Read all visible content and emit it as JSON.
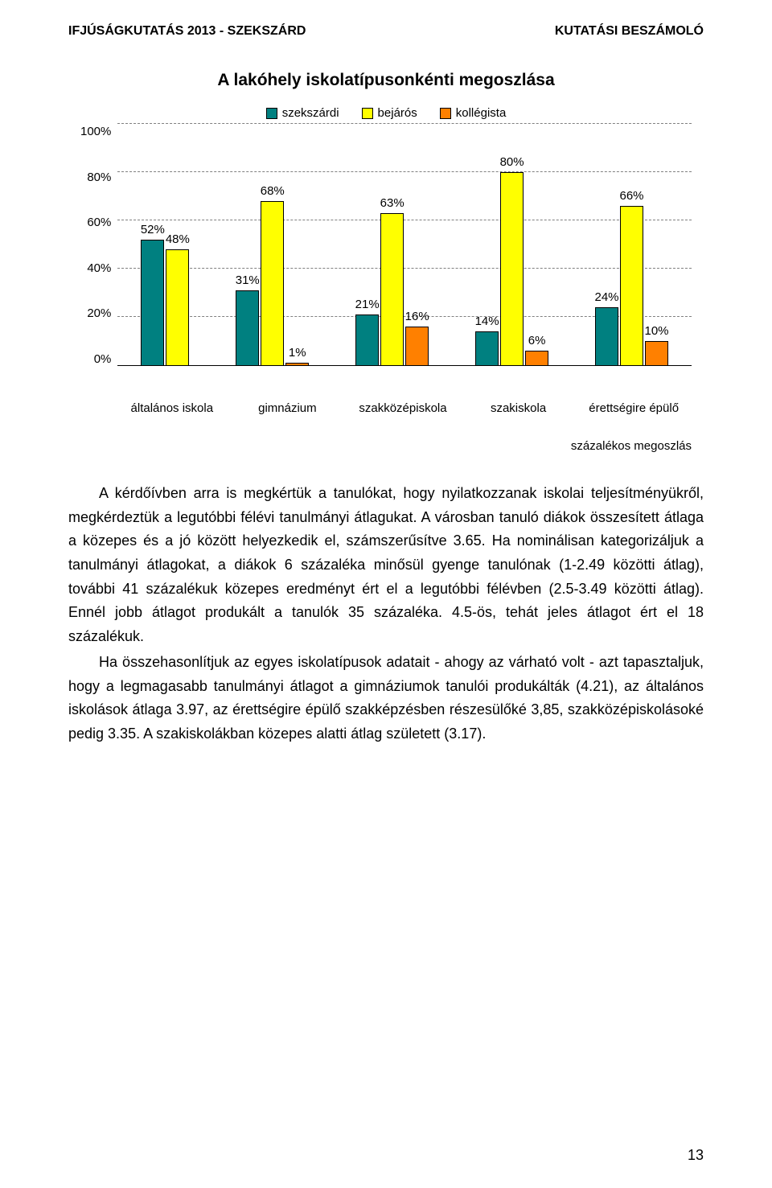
{
  "header": {
    "left": "IFJÚSÁGKUTATÁS 2013 - SZEKSZÁRD",
    "right": "KUTATÁSI BESZÁMOLÓ"
  },
  "chart": {
    "type": "bar",
    "title": "A lakóhely iskolatípusonkénti megoszlása",
    "legend": [
      {
        "label": "szekszárdi",
        "color": "#008080"
      },
      {
        "label": "bejárós",
        "color": "#ffff00"
      },
      {
        "label": "kollégista",
        "color": "#ff8000"
      }
    ],
    "ylim": [
      0,
      100
    ],
    "ytick_step": 20,
    "yticks": [
      "100%",
      "80%",
      "60%",
      "40%",
      "20%",
      "0%"
    ],
    "grid_color": "#808080",
    "categories": [
      "általános iskola",
      "gimnázium",
      "szakközépiskola",
      "szakiskola",
      "érettségire épülő"
    ],
    "series": [
      {
        "color": "#008080",
        "values": [
          52,
          31,
          21,
          14,
          24
        ],
        "labels": [
          "52%",
          "31%",
          "21%",
          "14%",
          "24%"
        ]
      },
      {
        "color": "#ffff00",
        "values": [
          48,
          68,
          63,
          80,
          66
        ],
        "labels": [
          "48%",
          "68%",
          "63%",
          "80%",
          "66%"
        ]
      },
      {
        "color": "#ff8000",
        "values": [
          null,
          1,
          16,
          6,
          10
        ],
        "labels": [
          "",
          "1%",
          "16%",
          "6%",
          "10%"
        ]
      }
    ],
    "background_color": "#ffffff"
  },
  "caption": "százalékos megoszlás",
  "paragraphs": [
    "A kérdőívben arra is megkértük a tanulókat, hogy nyilatkozzanak iskolai teljesítményükről, megkérdeztük a legutóbbi félévi tanulmányi átlagukat. A városban tanuló diákok összesített átlaga a közepes és a jó között helyezkedik el, számszerűsítve 3.65. Ha nominálisan kategorizáljuk a tanulmányi átlagokat, a diákok 6 százaléka minősül gyenge tanulónak (1-2.49 közötti átlag), további 41 százalékuk közepes eredményt ért el a legutóbbi félévben (2.5-3.49 közötti átlag). Ennél jobb átlagot produkált a tanulók 35 százaléka. 4.5-ös, tehát jeles átlagot ért el 18 százalékuk.",
    "Ha összehasonlítjuk az egyes iskolatípusok adatait - ahogy az várható volt - azt tapasztaljuk, hogy a legmagasabb tanulmányi átlagot a gimnáziumok tanulói produkálták (4.21), az általános iskolások átlaga 3.97, az érettségire épülő szakképzésben részesülőké 3,85, szakközépiskolásoké pedig 3.35. A szakiskolákban közepes alatti átlag született (3.17)."
  ],
  "page_number": "13"
}
